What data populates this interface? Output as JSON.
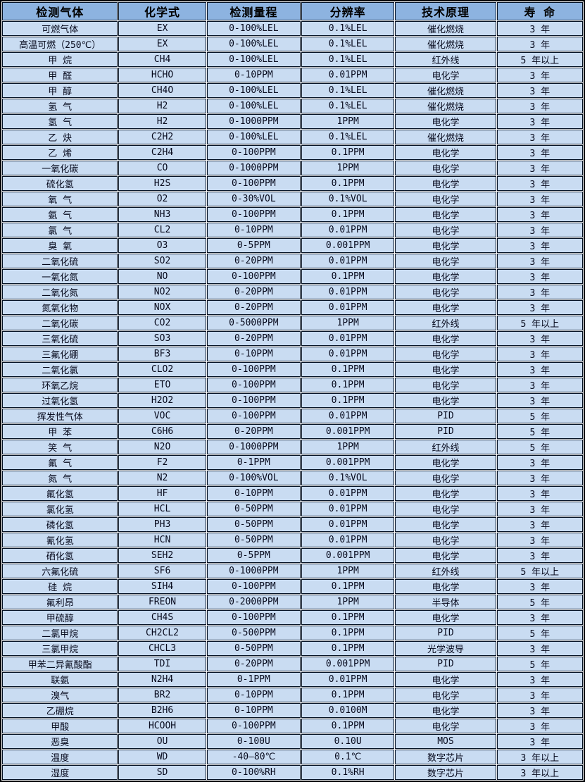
{
  "colors": {
    "header_bg": "#8db3e0",
    "row_bg": "#c9dcf2",
    "border": "#071426",
    "gridline_gap": "#fdfdfd",
    "text": "#06091c"
  },
  "table": {
    "columns": [
      "检测气体",
      "化学式",
      "检测量程",
      "分辨率",
      "技术原理",
      "寿 命"
    ],
    "rows": [
      [
        "可燃气体",
        "EX",
        "0-100%LEL",
        "0.1%LEL",
        "催化燃烧",
        "3 年"
      ],
      [
        "高温可燃（250℃）",
        "EX",
        "0-100%LEL",
        "0.1%LEL",
        "催化燃烧",
        "3 年"
      ],
      [
        "甲 烷",
        "CH4",
        "0-100%LEL",
        "0.1%LEL",
        "红外线",
        "5 年以上"
      ],
      [
        "甲 醛",
        "HCHO",
        "0-10PPM",
        "0.01PPM",
        "电化学",
        "3 年"
      ],
      [
        "甲 醇",
        "CH4O",
        "0-100%LEL",
        "0.1%LEL",
        "催化燃烧",
        "3 年"
      ],
      [
        "氢 气",
        "H2",
        "0-100%LEL",
        "0.1%LEL",
        "催化燃烧",
        "3 年"
      ],
      [
        "氢 气",
        "H2",
        "0-1000PPM",
        "1PPM",
        "电化学",
        "3 年"
      ],
      [
        "乙 炔",
        "C2H2",
        "0-100%LEL",
        "0.1%LEL",
        "催化燃烧",
        "3 年"
      ],
      [
        "乙 烯",
        "C2H4",
        "0-100PPM",
        "0.1PPM",
        "电化学",
        "3 年"
      ],
      [
        "一氧化碳",
        "CO",
        "0-1000PPM",
        "1PPM",
        "电化学",
        "3 年"
      ],
      [
        "硫化氢",
        "H2S",
        "0-100PPM",
        "0.1PPM",
        "电化学",
        "3 年"
      ],
      [
        "氧 气",
        "O2",
        "0-30%VOL",
        "0.1%VOL",
        "电化学",
        "3 年"
      ],
      [
        "氨 气",
        "NH3",
        "0-100PPM",
        "0.1PPM",
        "电化学",
        "3 年"
      ],
      [
        "氯 气",
        "CL2",
        "0-10PPM",
        "0.01PPM",
        "电化学",
        "3 年"
      ],
      [
        "臭 氧",
        "O3",
        "0-5PPM",
        "0.001PPM",
        "电化学",
        "3 年"
      ],
      [
        "二氧化硫",
        "SO2",
        "0-20PPM",
        "0.01PPM",
        "电化学",
        "3 年"
      ],
      [
        "一氧化氮",
        "NO",
        "0-100PPM",
        "0.1PPM",
        "电化学",
        "3 年"
      ],
      [
        "二氧化氮",
        "NO2",
        "0-20PPM",
        "0.01PPM",
        "电化学",
        "3 年"
      ],
      [
        "氮氧化物",
        "NOX",
        "0-20PPM",
        "0.01PPM",
        "电化学",
        "3 年"
      ],
      [
        "二氧化碳",
        "CO2",
        "0-5000PPM",
        "1PPM",
        "红外线",
        "5 年以上"
      ],
      [
        "三氧化硫",
        "SO3",
        "0-20PPM",
        "0.01PPM",
        "电化学",
        "3 年"
      ],
      [
        "三氟化硼",
        "BF3",
        "0-10PPM",
        "0.01PPM",
        "电化学",
        "3 年"
      ],
      [
        "二氧化氯",
        "CLO2",
        "0-100PPM",
        "0.1PPM",
        "电化学",
        "3 年"
      ],
      [
        "环氧乙烷",
        "ETO",
        "0-100PPM",
        "0.1PPM",
        "电化学",
        "3 年"
      ],
      [
        "过氧化氢",
        "H2O2",
        "0-100PPM",
        "0.1PPM",
        "电化学",
        "3 年"
      ],
      [
        "挥发性气体",
        "VOC",
        "0-100PPM",
        "0.01PPM",
        "PID",
        "5 年"
      ],
      [
        "甲 苯",
        "C6H6",
        "0-20PPM",
        "0.001PPM",
        "PID",
        "5 年"
      ],
      [
        "笑 气",
        "N2O",
        "0-1000PPM",
        "1PPM",
        "红外线",
        "5 年"
      ],
      [
        "氟 气",
        "F2",
        "0-1PPM",
        "0.001PPM",
        "电化学",
        "3 年"
      ],
      [
        "氮 气",
        "N2",
        "0-100%VOL",
        "0.1%VOL",
        "电化学",
        "3 年"
      ],
      [
        "氟化氢",
        "HF",
        "0-10PPM",
        "0.01PPM",
        "电化学",
        "3 年"
      ],
      [
        "氯化氢",
        "HCL",
        "0-50PPM",
        "0.01PPM",
        "电化学",
        "3 年"
      ],
      [
        "磷化氢",
        "PH3",
        "0-50PPM",
        "0.01PPM",
        "电化学",
        "3 年"
      ],
      [
        "氰化氢",
        "HCN",
        "0-50PPM",
        "0.01PPM",
        "电化学",
        "3 年"
      ],
      [
        "硒化氢",
        "SEH2",
        "0-5PPM",
        "0.001PPM",
        "电化学",
        "3 年"
      ],
      [
        "六氟化硫",
        "SF6",
        "0-1000PPM",
        "1PPM",
        "红外线",
        "5 年以上"
      ],
      [
        "硅 烷",
        "SIH4",
        "0-100PPM",
        "0.1PPM",
        "电化学",
        "3 年"
      ],
      [
        "氟利昂",
        "FREON",
        "0-2000PPM",
        "1PPM",
        "半导体",
        "5 年"
      ],
      [
        "甲硫醇",
        "CH4S",
        "0-100PPM",
        "0.1PPM",
        "电化学",
        "3 年"
      ],
      [
        "二氯甲烷",
        "CH2CL2",
        "0-500PPM",
        "0.1PPM",
        "PID",
        "5 年"
      ],
      [
        "三氯甲烷",
        "CHCL3",
        "0-50PPM",
        "0.1PPM",
        "光学波导",
        "3 年"
      ],
      [
        "甲苯二异氰酸酯",
        "TDI",
        "0-20PPM",
        "0.001PPM",
        "PID",
        "5 年"
      ],
      [
        "联氨",
        "N2H4",
        "0-1PPM",
        "0.01PPM",
        "电化学",
        "3 年"
      ],
      [
        "溴气",
        "BR2",
        "0-10PPM",
        "0.1PPM",
        "电化学",
        "3 年"
      ],
      [
        "乙硼烷",
        "B2H6",
        "0-10PPM",
        "0.0100M",
        "电化学",
        "3 年"
      ],
      [
        "甲酸",
        "HCOOH",
        "0-100PPM",
        "0.1PPM",
        "电化学",
        "3 年"
      ],
      [
        "恶臭",
        "OU",
        "0-100U",
        "0.10U",
        "MOS",
        "3 年"
      ],
      [
        "温度",
        "WD",
        "-40—80℃",
        "0.1℃",
        "数字芯片",
        "3 年以上"
      ],
      [
        "湿度",
        "SD",
        "0-100%RH",
        "0.1%RH",
        "数字芯片",
        "3 年以上"
      ]
    ]
  }
}
